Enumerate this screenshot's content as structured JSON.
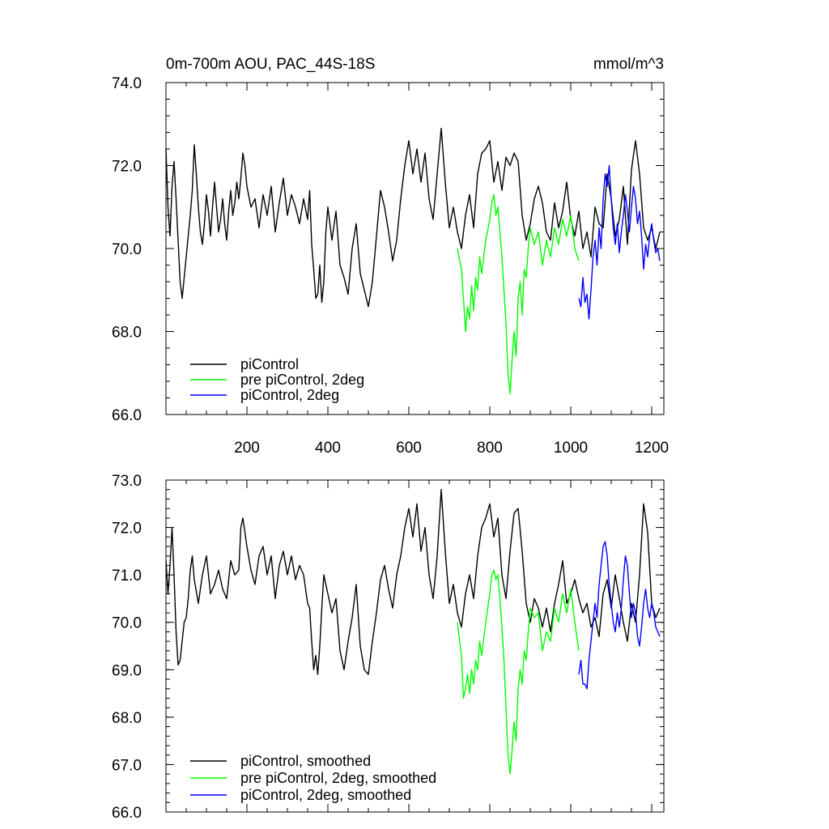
{
  "chart_data": [
    {
      "type": "line",
      "title": "0m-700m AOU, PAC_44S-18S",
      "units": "mmol/m^3",
      "xlabel": "",
      "ylabel": "",
      "xlim": [
        0,
        1230
      ],
      "ylim": [
        66,
        74
      ],
      "x_ticks": [
        200,
        400,
        600,
        800,
        1000,
        1200
      ],
      "x_tick_labels": [
        "200",
        "400",
        "600",
        "800",
        "1000",
        "1200"
      ],
      "y_ticks": [
        66,
        68,
        70,
        72,
        74
      ],
      "y_tick_labels": [
        "66.0",
        "68.0",
        "70.0",
        "72.0",
        "74.0"
      ],
      "legend_position": "bottom-left",
      "series": [
        {
          "name": "piControl",
          "color": "#000000",
          "x": [
            0,
            5,
            10,
            15,
            20,
            25,
            30,
            35,
            40,
            45,
            50,
            55,
            60,
            65,
            70,
            75,
            80,
            85,
            90,
            95,
            100,
            105,
            110,
            115,
            120,
            125,
            130,
            135,
            140,
            145,
            150,
            155,
            160,
            165,
            170,
            175,
            180,
            185,
            190,
            195,
            200,
            210,
            220,
            230,
            240,
            250,
            260,
            270,
            280,
            290,
            300,
            310,
            320,
            330,
            340,
            350,
            355,
            360,
            365,
            370,
            375,
            380,
            385,
            390,
            395,
            400,
            410,
            420,
            430,
            440,
            450,
            460,
            470,
            480,
            490,
            500,
            510,
            520,
            530,
            540,
            550,
            560,
            570,
            580,
            590,
            600,
            610,
            620,
            630,
            640,
            650,
            660,
            670,
            680,
            690,
            700,
            710,
            720,
            730,
            740,
            750,
            760,
            770,
            780,
            790,
            800,
            810,
            820,
            830,
            840,
            850,
            860,
            870,
            880,
            890,
            900,
            910,
            920,
            930,
            940,
            950,
            960,
            970,
            980,
            990,
            1000,
            1010,
            1020,
            1030,
            1040,
            1050,
            1060,
            1070,
            1080,
            1090,
            1100,
            1110,
            1120,
            1130,
            1140,
            1150,
            1160,
            1170,
            1180,
            1190,
            1200,
            1210,
            1220
          ],
          "values": [
            72.4,
            71.0,
            70.3,
            71.5,
            72.1,
            71.2,
            70.2,
            69.2,
            68.8,
            69.3,
            69.8,
            70.3,
            70.8,
            71.4,
            72.5,
            71.8,
            71.0,
            70.4,
            70.1,
            70.6,
            71.3,
            70.9,
            70.3,
            71.0,
            71.6,
            71.0,
            70.4,
            70.7,
            71.2,
            70.6,
            70.2,
            70.9,
            71.4,
            70.8,
            71.1,
            71.6,
            71.2,
            71.7,
            72.3,
            72.0,
            71.5,
            71.0,
            71.2,
            70.5,
            71.3,
            70.8,
            71.5,
            70.4,
            71.1,
            71.7,
            70.8,
            71.3,
            71.0,
            70.6,
            71.2,
            70.7,
            71.4,
            70.1,
            69.5,
            68.8,
            68.9,
            69.6,
            68.7,
            69.2,
            70.4,
            71.0,
            70.2,
            70.9,
            69.6,
            69.3,
            68.9,
            70.0,
            70.6,
            69.4,
            69.0,
            68.6,
            69.2,
            70.3,
            71.4,
            71.0,
            70.4,
            69.7,
            70.2,
            71.2,
            72.0,
            72.6,
            71.8,
            72.4,
            71.6,
            72.3,
            71.2,
            70.7,
            71.8,
            72.9,
            71.6,
            70.5,
            71.0,
            70.4,
            70.0,
            70.8,
            71.3,
            70.5,
            71.8,
            72.3,
            72.4,
            72.6,
            71.6,
            72.1,
            71.4,
            72.2,
            72.0,
            72.3,
            72.1,
            70.8,
            70.2,
            70.6,
            71.2,
            71.5,
            71.1,
            70.4,
            70.2,
            71.1,
            70.5,
            70.9,
            71.6,
            70.7,
            70.3,
            70.9,
            70.0,
            70.4,
            69.8,
            71.0,
            70.6,
            70.5,
            71.8,
            71.2,
            70.3,
            70.7,
            71.5,
            70.1,
            71.9,
            72.6,
            71.8,
            70.5,
            70.2,
            70.5,
            70.0,
            70.4
          ]
        },
        {
          "name": "pre piControl, 2deg",
          "color": "#00ff00",
          "x": [
            720,
            730,
            735,
            740,
            745,
            750,
            755,
            760,
            765,
            770,
            775,
            780,
            790,
            800,
            805,
            810,
            815,
            820,
            825,
            830,
            835,
            840,
            845,
            850,
            855,
            860,
            865,
            870,
            875,
            880,
            885,
            890,
            895,
            900,
            910,
            920,
            930,
            940,
            950,
            960,
            970,
            980,
            990,
            1000,
            1010,
            1020
          ],
          "values": [
            70.0,
            69.5,
            68.8,
            68.0,
            68.6,
            68.3,
            69.1,
            68.5,
            69.3,
            69.0,
            69.8,
            69.4,
            70.2,
            70.7,
            71.1,
            71.3,
            70.8,
            71.0,
            70.4,
            69.8,
            69.0,
            68.2,
            67.0,
            66.5,
            67.3,
            68.0,
            67.4,
            68.8,
            69.2,
            68.4,
            69.5,
            69.3,
            70.0,
            70.5,
            70.1,
            70.4,
            69.6,
            70.2,
            69.8,
            70.5,
            70.1,
            70.7,
            70.3,
            70.8,
            70.0,
            69.7
          ]
        },
        {
          "name": "piControl, 2deg",
          "color": "#0000ff",
          "x": [
            1020,
            1025,
            1030,
            1035,
            1040,
            1045,
            1050,
            1055,
            1060,
            1065,
            1070,
            1075,
            1080,
            1085,
            1090,
            1095,
            1100,
            1105,
            1110,
            1115,
            1120,
            1125,
            1130,
            1135,
            1140,
            1145,
            1150,
            1155,
            1160,
            1165,
            1170,
            1175,
            1180,
            1185,
            1190,
            1195,
            1200,
            1205,
            1210,
            1215,
            1220
          ],
          "values": [
            68.8,
            68.6,
            69.3,
            68.7,
            68.9,
            68.3,
            69.0,
            69.8,
            70.2,
            69.6,
            70.5,
            70.0,
            71.2,
            71.8,
            71.5,
            72.0,
            71.2,
            70.5,
            70.1,
            70.6,
            69.9,
            70.4,
            70.8,
            71.3,
            70.9,
            70.4,
            71.0,
            71.5,
            71.2,
            70.6,
            70.9,
            70.3,
            69.5,
            70.1,
            69.8,
            70.3,
            70.6,
            70.2,
            69.9,
            70.0,
            69.7
          ]
        }
      ]
    },
    {
      "type": "line",
      "title": "",
      "xlabel": "",
      "ylabel": "",
      "xlim": [
        0,
        1230
      ],
      "ylim": [
        66,
        73
      ],
      "x_ticks": [
        200,
        400,
        600,
        800,
        1000,
        1200
      ],
      "y_ticks": [
        66,
        67,
        68,
        69,
        70,
        71,
        72,
        73
      ],
      "y_tick_labels": [
        "66.0",
        "67.0",
        "68.0",
        "69.0",
        "70.0",
        "71.0",
        "72.0",
        "73.0"
      ],
      "legend_position": "bottom-left",
      "series": [
        {
          "name": "piControl, smoothed",
          "color": "#000000",
          "x": [
            0,
            5,
            10,
            15,
            20,
            25,
            30,
            35,
            40,
            45,
            50,
            55,
            60,
            65,
            70,
            80,
            90,
            100,
            110,
            120,
            130,
            140,
            150,
            160,
            170,
            180,
            185,
            190,
            200,
            210,
            220,
            230,
            240,
            250,
            260,
            270,
            280,
            290,
            300,
            310,
            320,
            330,
            340,
            350,
            355,
            360,
            365,
            370,
            375,
            380,
            385,
            390,
            395,
            400,
            410,
            420,
            430,
            440,
            450,
            460,
            470,
            480,
            490,
            500,
            510,
            520,
            530,
            540,
            550,
            560,
            570,
            580,
            590,
            600,
            610,
            620,
            630,
            640,
            650,
            660,
            670,
            680,
            690,
            700,
            710,
            720,
            730,
            740,
            750,
            760,
            770,
            780,
            790,
            800,
            810,
            820,
            830,
            840,
            850,
            860,
            870,
            880,
            890,
            900,
            910,
            920,
            930,
            940,
            950,
            960,
            970,
            980,
            990,
            1000,
            1010,
            1020,
            1030,
            1040,
            1050,
            1060,
            1070,
            1080,
            1090,
            1100,
            1110,
            1120,
            1130,
            1140,
            1150,
            1160,
            1170,
            1180,
            1190,
            1200,
            1210,
            1220
          ],
          "values": [
            71.3,
            70.6,
            71.2,
            72.0,
            71.0,
            69.8,
            69.1,
            69.2,
            69.6,
            70.0,
            70.1,
            70.5,
            71.1,
            71.4,
            70.9,
            70.4,
            71.0,
            71.4,
            70.6,
            70.8,
            71.1,
            70.7,
            70.5,
            71.3,
            71.0,
            71.1,
            72.0,
            72.2,
            71.6,
            71.1,
            70.8,
            71.4,
            71.6,
            71.0,
            71.4,
            70.5,
            71.2,
            71.5,
            71.0,
            71.4,
            70.9,
            71.2,
            71.0,
            70.4,
            70.3,
            69.6,
            69.0,
            69.3,
            68.9,
            69.5,
            70.3,
            71.0,
            70.8,
            70.6,
            70.2,
            70.5,
            69.4,
            69.0,
            69.6,
            70.1,
            70.8,
            69.5,
            69.0,
            68.9,
            69.6,
            70.2,
            70.9,
            71.2,
            70.7,
            70.3,
            71.0,
            71.4,
            72.0,
            72.4,
            71.8,
            72.5,
            71.5,
            72.0,
            71.0,
            70.5,
            71.4,
            72.8,
            71.5,
            70.4,
            70.8,
            70.2,
            69.9,
            70.6,
            71.0,
            70.5,
            71.4,
            72.0,
            72.2,
            72.5,
            71.8,
            72.2,
            71.0,
            70.5,
            71.5,
            72.3,
            72.4,
            71.5,
            70.4,
            70.0,
            70.5,
            70.3,
            69.9,
            70.3,
            69.8,
            70.4,
            70.8,
            71.3,
            70.4,
            70.6,
            70.9,
            70.5,
            70.2,
            70.4,
            69.9,
            70.1,
            69.7,
            70.6,
            70.9,
            70.3,
            71.0,
            70.5,
            70.0,
            69.6,
            70.4,
            70.0,
            71.0,
            72.5,
            71.9,
            70.4,
            70.1,
            70.3
          ]
        },
        {
          "name": "pre piControl, 2deg, smoothed",
          "color": "#00ff00",
          "x": [
            720,
            730,
            735,
            740,
            745,
            750,
            755,
            760,
            765,
            770,
            775,
            780,
            790,
            800,
            805,
            810,
            815,
            820,
            825,
            830,
            835,
            840,
            845,
            850,
            855,
            860,
            865,
            870,
            875,
            880,
            885,
            890,
            895,
            900,
            910,
            920,
            930,
            940,
            950,
            960,
            970,
            980,
            990,
            1000,
            1010,
            1020
          ],
          "values": [
            70.0,
            69.3,
            68.4,
            68.6,
            68.9,
            68.5,
            69.0,
            68.7,
            69.2,
            69.0,
            69.6,
            69.3,
            70.0,
            70.6,
            71.0,
            71.1,
            70.9,
            71.0,
            70.5,
            69.9,
            69.2,
            68.2,
            67.2,
            66.8,
            67.3,
            67.9,
            67.5,
            68.6,
            69.0,
            68.7,
            69.4,
            69.2,
            69.8,
            70.3,
            70.1,
            70.2,
            69.4,
            69.8,
            69.6,
            70.3,
            70.0,
            70.6,
            70.2,
            70.7,
            70.0,
            69.4
          ]
        },
        {
          "name": "piControl, 2deg, smoothed",
          "color": "#0000ff",
          "x": [
            1020,
            1025,
            1030,
            1035,
            1040,
            1045,
            1050,
            1055,
            1060,
            1065,
            1070,
            1075,
            1080,
            1085,
            1090,
            1095,
            1100,
            1105,
            1110,
            1115,
            1120,
            1125,
            1130,
            1135,
            1140,
            1145,
            1150,
            1155,
            1160,
            1165,
            1170,
            1175,
            1180,
            1185,
            1190,
            1195,
            1200,
            1205,
            1210,
            1215,
            1220
          ],
          "values": [
            68.9,
            69.2,
            68.7,
            68.7,
            68.6,
            69.2,
            69.6,
            70.0,
            70.4,
            70.1,
            70.8,
            71.2,
            71.6,
            71.7,
            71.4,
            70.8,
            70.4,
            70.0,
            69.8,
            70.2,
            69.9,
            70.3,
            70.9,
            71.4,
            71.2,
            70.6,
            70.1,
            70.4,
            70.2,
            69.7,
            69.5,
            69.9,
            70.4,
            70.7,
            70.3,
            70.1,
            70.4,
            70.2,
            69.9,
            69.8,
            69.7
          ]
        }
      ]
    }
  ]
}
